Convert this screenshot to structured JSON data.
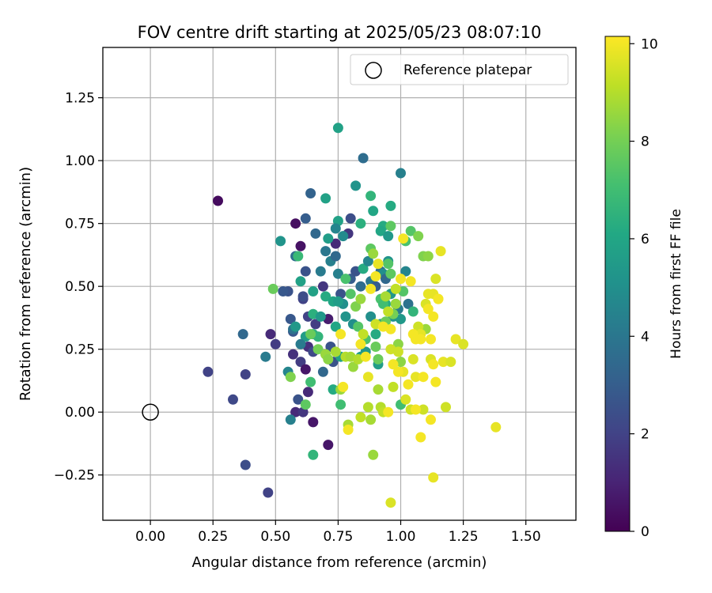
{
  "chart_data": {
    "type": "scatter",
    "title": "FOV centre drift starting at 2025/05/23 08:07:10",
    "xlabel": "Angular distance from reference (arcmin)",
    "ylabel": "Rotation from reference (arcmin)",
    "xlim": [
      -0.19,
      1.7
    ],
    "ylim": [
      -0.43,
      1.45
    ],
    "x_ticks": [
      "0.00",
      "0.25",
      "0.50",
      "0.75",
      "1.00",
      "1.25",
      "1.50"
    ],
    "x_tick_values": [
      0,
      0.25,
      0.5,
      0.75,
      1.0,
      1.25,
      1.5
    ],
    "y_ticks": [
      "−0.25",
      "0.00",
      "0.25",
      "0.50",
      "0.75",
      "1.00",
      "1.25"
    ],
    "y_tick_values": [
      -0.25,
      0,
      0.25,
      0.5,
      0.75,
      1.0,
      1.25
    ],
    "grid": true,
    "legend": {
      "position": "top-right",
      "entries": [
        {
          "label": "Reference platepar",
          "marker": "open-circle"
        }
      ]
    },
    "reference_point": {
      "x": 0.0,
      "y": 0.0
    },
    "colorbar": {
      "label": "Hours from first FF file",
      "colormap": "viridis",
      "range": [
        0,
        10.15
      ],
      "ticks": [
        "0",
        "2",
        "4",
        "6",
        "8",
        "10"
      ],
      "tick_values": [
        0,
        2,
        4,
        6,
        8,
        10
      ]
    },
    "series": [
      {
        "points": [
          [
            0.27,
            0.84,
            0.3
          ],
          [
            0.58,
            0.75,
            0.4
          ],
          [
            0.6,
            0.66,
            0.5
          ],
          [
            0.74,
            0.67,
            1.2
          ],
          [
            0.79,
            0.71,
            1.6
          ],
          [
            0.8,
            0.77,
            2.4
          ],
          [
            0.61,
            0.45,
            2.0
          ],
          [
            0.55,
            0.48,
            2.6
          ],
          [
            0.69,
            0.5,
            1.6
          ],
          [
            0.48,
            0.31,
            1.2
          ],
          [
            0.5,
            0.27,
            1.8
          ],
          [
            0.57,
            0.23,
            1.4
          ],
          [
            0.6,
            0.2,
            1.8
          ],
          [
            0.63,
            0.26,
            1.4
          ],
          [
            0.65,
            0.24,
            2.2
          ],
          [
            0.66,
            0.35,
            1.8
          ],
          [
            0.63,
            0.38,
            2.0
          ],
          [
            0.71,
            0.37,
            0.8
          ],
          [
            0.72,
            0.26,
            2.6
          ],
          [
            0.69,
            0.16,
            3.4
          ],
          [
            0.73,
            0.2,
            2.6
          ],
          [
            0.62,
            0.17,
            0.6
          ],
          [
            0.59,
            0.05,
            2.6
          ],
          [
            0.58,
            0.0,
            1.2
          ],
          [
            0.63,
            0.08,
            1.2
          ],
          [
            0.61,
            0.0,
            1.6
          ],
          [
            0.65,
            -0.04,
            0.6
          ],
          [
            0.71,
            -0.13,
            0.6
          ],
          [
            0.23,
            0.16,
            2.0
          ],
          [
            0.33,
            0.05,
            2.2
          ],
          [
            0.38,
            0.15,
            2.0
          ],
          [
            0.37,
            0.31,
            3.4
          ],
          [
            0.38,
            -0.21,
            2.4
          ],
          [
            0.47,
            -0.32,
            2.0
          ],
          [
            0.46,
            0.22,
            4.2
          ],
          [
            0.53,
            0.48,
            2.8
          ],
          [
            0.56,
            0.37,
            2.8
          ],
          [
            0.57,
            0.32,
            2.8
          ],
          [
            0.58,
            0.62,
            3.6
          ],
          [
            0.59,
            0.62,
            6.8
          ],
          [
            0.61,
            0.46,
            2.4
          ],
          [
            0.62,
            0.56,
            2.6
          ],
          [
            0.62,
            0.77,
            3.0
          ],
          [
            0.64,
            0.87,
            3.2
          ],
          [
            0.66,
            0.71,
            3.4
          ],
          [
            0.68,
            0.56,
            4.2
          ],
          [
            0.7,
            0.64,
            4.0
          ],
          [
            0.72,
            0.6,
            4.4
          ],
          [
            0.74,
            0.62,
            3.4
          ],
          [
            0.75,
            0.55,
            4.4
          ],
          [
            0.76,
            0.47,
            2.6
          ],
          [
            0.77,
            0.43,
            5.0
          ],
          [
            0.78,
            0.38,
            5.2
          ],
          [
            0.8,
            0.53,
            3.0
          ],
          [
            0.82,
            0.56,
            2.6
          ],
          [
            0.84,
            0.5,
            3.6
          ],
          [
            0.85,
            0.57,
            6.2
          ],
          [
            0.87,
            0.6,
            4.6
          ],
          [
            0.88,
            0.52,
            4.0
          ],
          [
            0.9,
            0.5,
            3.0
          ],
          [
            0.92,
            0.56,
            3.6
          ],
          [
            0.93,
            0.55,
            5.0
          ],
          [
            0.94,
            0.53,
            3.4
          ],
          [
            0.95,
            0.6,
            5.2
          ],
          [
            0.96,
            0.47,
            6.4
          ],
          [
            0.98,
            0.43,
            5.8
          ],
          [
            1.01,
            0.48,
            7.4
          ],
          [
            1.03,
            0.43,
            3.8
          ],
          [
            1.05,
            0.4,
            6.6
          ],
          [
            1.02,
            0.56,
            4.6
          ],
          [
            0.75,
            1.13,
            5.8
          ],
          [
            0.85,
            1.01,
            3.6
          ],
          [
            1.0,
            0.95,
            4.4
          ],
          [
            0.82,
            0.9,
            5.2
          ],
          [
            0.88,
            0.86,
            6.6
          ],
          [
            0.7,
            0.85,
            5.8
          ],
          [
            0.89,
            0.8,
            6.0
          ],
          [
            0.96,
            0.82,
            6.2
          ],
          [
            0.75,
            0.76,
            5.8
          ],
          [
            0.84,
            0.75,
            6.4
          ],
          [
            0.74,
            0.73,
            4.6
          ],
          [
            0.93,
            0.74,
            6.2
          ],
          [
            0.96,
            0.74,
            7.6
          ],
          [
            0.92,
            0.72,
            6.0
          ],
          [
            0.95,
            0.7,
            5.4
          ],
          [
            0.52,
            0.68,
            5.2
          ],
          [
            0.77,
            0.7,
            4.8
          ],
          [
            0.71,
            0.69,
            5.6
          ],
          [
            0.6,
            0.52,
            5.8
          ],
          [
            0.57,
            0.33,
            3.8
          ],
          [
            0.58,
            0.34,
            5.4
          ],
          [
            0.62,
            0.3,
            5.6
          ],
          [
            0.65,
            0.31,
            6.4
          ],
          [
            0.67,
            0.3,
            6.6
          ],
          [
            0.65,
            0.48,
            5.8
          ],
          [
            0.65,
            0.39,
            6.4
          ],
          [
            0.68,
            0.38,
            5.4
          ],
          [
            0.7,
            0.46,
            6.2
          ],
          [
            0.73,
            0.44,
            6.0
          ],
          [
            0.75,
            0.44,
            5.6
          ],
          [
            0.74,
            0.34,
            6.0
          ],
          [
            0.76,
            0.22,
            5.8
          ],
          [
            0.81,
            0.35,
            5.0
          ],
          [
            0.84,
            0.22,
            5.6
          ],
          [
            0.86,
            0.24,
            5.4
          ],
          [
            0.88,
            0.38,
            5.0
          ],
          [
            0.9,
            0.31,
            6.2
          ],
          [
            0.91,
            0.19,
            5.6
          ],
          [
            0.92,
            0.35,
            5.4
          ],
          [
            0.94,
            0.43,
            6.2
          ],
          [
            0.96,
            0.47,
            5.4
          ],
          [
            0.97,
            0.38,
            5.2
          ],
          [
            1.0,
            0.37,
            5.4
          ],
          [
            0.99,
            0.41,
            4.2
          ],
          [
            0.55,
            0.16,
            4.6
          ],
          [
            0.56,
            -0.03,
            4.4
          ],
          [
            0.6,
            0.27,
            4.2
          ],
          [
            0.62,
            0.03,
            7.6
          ],
          [
            0.64,
            0.12,
            7.0
          ],
          [
            0.65,
            -0.17,
            6.6
          ],
          [
            0.7,
            0.23,
            7.2
          ],
          [
            0.73,
            0.09,
            6.2
          ],
          [
            0.76,
            0.03,
            7.0
          ],
          [
            0.78,
            0.53,
            7.2
          ],
          [
            0.8,
            0.47,
            7.4
          ],
          [
            0.82,
            0.42,
            8.2
          ],
          [
            0.83,
            0.34,
            7.4
          ],
          [
            0.84,
            0.45,
            8.6
          ],
          [
            0.86,
            0.29,
            7.2
          ],
          [
            0.88,
            0.65,
            7.6
          ],
          [
            0.89,
            0.63,
            8.6
          ],
          [
            0.9,
            0.26,
            7.8
          ],
          [
            0.91,
            0.21,
            7.8
          ],
          [
            0.92,
            0.45,
            7.2
          ],
          [
            0.93,
            0.43,
            7.0
          ],
          [
            0.94,
            0.36,
            7.8
          ],
          [
            0.95,
            0.59,
            7.4
          ],
          [
            0.96,
            0.55,
            7.6
          ],
          [
            0.97,
            0.39,
            8.0
          ],
          [
            0.98,
            0.43,
            8.6
          ],
          [
            0.99,
            0.27,
            8.4
          ],
          [
            1.0,
            0.03,
            7.0
          ],
          [
            1.02,
            0.68,
            7.2
          ],
          [
            1.04,
            0.72,
            7.4
          ],
          [
            1.07,
            0.7,
            8.2
          ],
          [
            1.09,
            0.62,
            8.2
          ],
          [
            1.11,
            0.62,
            8.4
          ],
          [
            1.1,
            0.33,
            8.6
          ],
          [
            1.0,
            0.2,
            8.4
          ],
          [
            0.49,
            0.49,
            7.8
          ],
          [
            0.56,
            0.14,
            8.2
          ],
          [
            0.64,
            0.31,
            7.8
          ],
          [
            0.67,
            0.25,
            8.0
          ],
          [
            0.7,
            0.23,
            8.6
          ],
          [
            0.71,
            0.21,
            8.4
          ],
          [
            0.74,
            0.24,
            8.8
          ],
          [
            0.76,
            0.09,
            8.6
          ],
          [
            0.78,
            0.22,
            9.0
          ],
          [
            0.79,
            -0.05,
            8.8
          ],
          [
            0.8,
            0.22,
            8.8
          ],
          [
            0.81,
            0.18,
            8.6
          ],
          [
            0.83,
            0.21,
            9.0
          ],
          [
            0.84,
            -0.02,
            9.2
          ],
          [
            0.85,
            0.31,
            9.2
          ],
          [
            0.87,
            0.02,
            9.0
          ],
          [
            0.88,
            -0.03,
            8.8
          ],
          [
            0.89,
            -0.17,
            8.6
          ],
          [
            0.9,
            0.35,
            9.4
          ],
          [
            0.91,
            0.09,
            8.8
          ],
          [
            0.92,
            0.02,
            9.0
          ],
          [
            0.93,
            0.0,
            9.2
          ],
          [
            0.94,
            0.46,
            8.8
          ],
          [
            0.95,
            0.4,
            9.2
          ],
          [
            0.96,
            0.25,
            9.4
          ],
          [
            0.97,
            0.1,
            9.2
          ],
          [
            0.98,
            0.49,
            9.2
          ],
          [
            0.99,
            0.24,
            9.4
          ],
          [
            1.01,
            0.16,
            9.8
          ],
          [
            1.02,
            0.05,
            9.6
          ],
          [
            1.04,
            0.01,
            9.4
          ],
          [
            1.05,
            0.21,
            9.6
          ],
          [
            1.06,
            0.14,
            9.8
          ],
          [
            1.07,
            0.34,
            9.4
          ],
          [
            1.08,
            0.31,
            9.8
          ],
          [
            1.09,
            0.01,
            9.4
          ],
          [
            1.1,
            0.43,
            9.6
          ],
          [
            1.11,
            0.47,
            9.8
          ],
          [
            1.12,
            0.21,
            9.6
          ],
          [
            1.13,
            0.47,
            9.8
          ],
          [
            1.14,
            0.53,
            9.6
          ],
          [
            1.15,
            0.45,
            9.8
          ],
          [
            1.16,
            0.64,
            9.8
          ],
          [
            1.17,
            0.2,
            9.8
          ],
          [
            1.18,
            0.02,
            9.4
          ],
          [
            1.2,
            0.2,
            9.6
          ],
          [
            1.22,
            0.29,
            9.8
          ],
          [
            1.25,
            0.27,
            9.6
          ],
          [
            1.13,
            -0.26,
            9.8
          ],
          [
            0.96,
            -0.36,
            9.6
          ],
          [
            1.38,
            -0.06,
            9.8
          ],
          [
            1.08,
            -0.1,
            10.0
          ],
          [
            0.79,
            -0.07,
            10.0
          ],
          [
            0.76,
            0.31,
            10.0
          ],
          [
            0.77,
            0.1,
            10.0
          ],
          [
            0.84,
            0.27,
            10.0
          ],
          [
            0.87,
            0.14,
            9.8
          ],
          [
            0.88,
            0.49,
            10.0
          ],
          [
            0.91,
            0.59,
            9.8
          ],
          [
            0.93,
            0.34,
            10.0
          ],
          [
            0.96,
            0.33,
            10.0
          ],
          [
            1.0,
            0.53,
            10.0
          ],
          [
            1.01,
            0.69,
            10.0
          ],
          [
            1.03,
            0.11,
            10.0
          ],
          [
            1.05,
            0.31,
            10.0
          ],
          [
            1.06,
            0.29,
            10.0
          ],
          [
            1.08,
            0.29,
            10.0
          ],
          [
            1.09,
            0.14,
            10.0
          ],
          [
            1.11,
            0.41,
            10.0
          ],
          [
            1.12,
            0.29,
            10.0
          ],
          [
            1.13,
            0.38,
            10.0
          ],
          [
            1.14,
            0.12,
            10.0
          ],
          [
            1.15,
            0.45,
            10.0
          ],
          [
            1.13,
            0.19,
            10.0
          ],
          [
            1.06,
            0.01,
            10.0
          ],
          [
            0.97,
            0.19,
            10.0
          ],
          [
            0.99,
            0.16,
            10.0
          ],
          [
            0.86,
            0.22,
            10.0
          ],
          [
            0.9,
            0.54,
            10.0
          ],
          [
            1.04,
            0.52,
            10.0
          ],
          [
            0.95,
            0.0,
            10.0
          ],
          [
            1.12,
            -0.03,
            10.0
          ]
        ]
      }
    ]
  }
}
